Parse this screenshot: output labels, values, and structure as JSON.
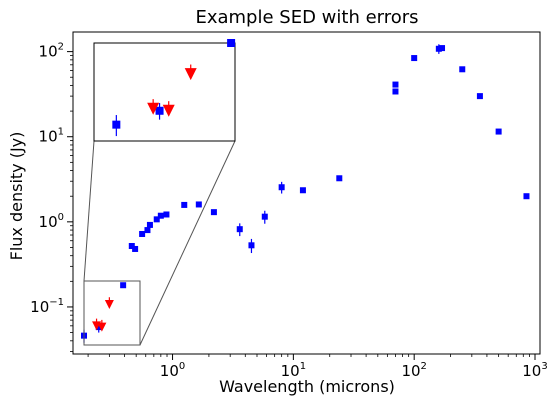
{
  "chart_data": {
    "type": "scatter",
    "title": "Example SED with errors",
    "xlabel": "Wavelength (microns)",
    "ylabel": "Flux density (Jy)",
    "xscale": "log",
    "yscale": "log",
    "xlim": [
      0.15,
      1100
    ],
    "ylim": [
      0.028,
      170
    ],
    "grid": false,
    "legend": "none",
    "x_ticks": [
      {
        "value": 1,
        "base": "10",
        "exp": "0"
      },
      {
        "value": 10,
        "base": "10",
        "exp": "1"
      },
      {
        "value": 100,
        "base": "10",
        "exp": "2"
      },
      {
        "value": 1000,
        "base": "10",
        "exp": "3"
      }
    ],
    "y_ticks": [
      {
        "value": 0.1,
        "base": "10",
        "exp": "−1"
      },
      {
        "value": 1,
        "base": "10",
        "exp": "0"
      },
      {
        "value": 10,
        "base": "10",
        "exp": "1"
      },
      {
        "value": 100,
        "base": "10",
        "exp": "2"
      }
    ],
    "colors": {
      "detection": "#0000ff",
      "upper_limit": "#ff0000",
      "frame": "#000000",
      "zoom_line": "#555555"
    },
    "series": [
      {
        "marker": "square",
        "color": "#0000ff",
        "points": [
          {
            "x": 0.185,
            "y": 0.046,
            "yerr_lo": 0.008,
            "yerr_hi": 0.008
          },
          {
            "x": 0.245,
            "y": 0.058,
            "yerr_lo": 0.008,
            "yerr_hi": 0.008
          },
          {
            "x": 0.39,
            "y": 0.18
          },
          {
            "x": 0.46,
            "y": 0.52
          },
          {
            "x": 0.49,
            "y": 0.48
          },
          {
            "x": 0.56,
            "y": 0.72
          },
          {
            "x": 0.62,
            "y": 0.8
          },
          {
            "x": 0.65,
            "y": 0.92
          },
          {
            "x": 0.74,
            "y": 1.07
          },
          {
            "x": 0.8,
            "y": 1.18
          },
          {
            "x": 0.89,
            "y": 1.22
          },
          {
            "x": 1.25,
            "y": 1.58
          },
          {
            "x": 1.65,
            "y": 1.6
          },
          {
            "x": 2.2,
            "y": 1.3
          },
          {
            "x": 3.6,
            "y": 0.82,
            "yerr_lo": 0.14,
            "yerr_hi": 0.14
          },
          {
            "x": 4.5,
            "y": 0.53,
            "yerr_lo": 0.1,
            "yerr_hi": 0.1
          },
          {
            "x": 5.8,
            "y": 1.15,
            "yerr_lo": 0.2,
            "yerr_hi": 0.2
          },
          {
            "x": 8.0,
            "y": 2.55,
            "yerr_lo": 0.4,
            "yerr_hi": 0.4
          },
          {
            "x": 12,
            "y": 2.35
          },
          {
            "x": 24,
            "y": 3.25
          },
          {
            "x": 70,
            "y": 41
          },
          {
            "x": 70,
            "y": 34
          },
          {
            "x": 100,
            "y": 84
          },
          {
            "x": 160,
            "y": 108,
            "yerr_lo": 14,
            "yerr_hi": 14
          },
          {
            "x": 170,
            "y": 110
          },
          {
            "x": 250,
            "y": 62
          },
          {
            "x": 350,
            "y": 30
          },
          {
            "x": 500,
            "y": 11.5
          },
          {
            "x": 850,
            "y": 2.0
          }
        ]
      },
      {
        "marker": "triangle-down",
        "color": "#ff0000",
        "points": [
          {
            "x": 0.235,
            "y": 0.06
          },
          {
            "x": 0.26,
            "y": 0.058
          },
          {
            "x": 0.3,
            "y": 0.107
          }
        ]
      }
    ],
    "inset": {
      "source_xlim": [
        0.16,
        0.4
      ],
      "source_ylim": [
        0.035,
        0.18
      ]
    }
  }
}
